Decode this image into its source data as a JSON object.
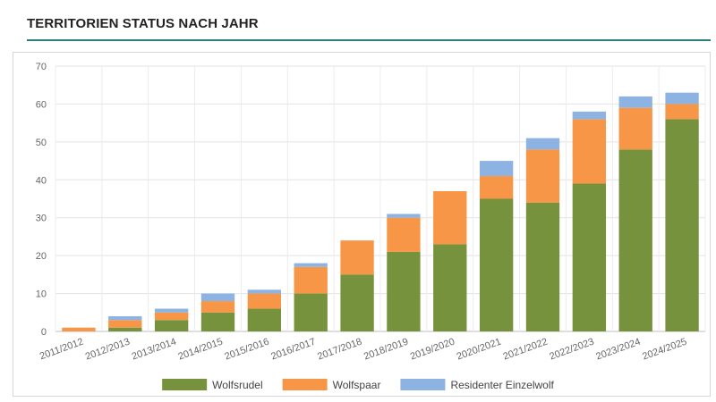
{
  "title": "TERRITORIEN STATUS NACH JAHR",
  "chart_data": {
    "type": "bar",
    "stacked": true,
    "categories": [
      "2011/2012",
      "2012/2013",
      "2013/2014",
      "2014/2015",
      "2015/2016",
      "2016/2017",
      "2017/2018",
      "2018/2019",
      "2019/2020",
      "2020/2021",
      "2021/2022",
      "2022/2023",
      "2023/2024",
      "2024/2025"
    ],
    "series": [
      {
        "name": "Wolfsrudel",
        "color": "#76923c",
        "values": [
          0,
          1,
          3,
          5,
          6,
          10,
          15,
          21,
          23,
          35,
          34,
          39,
          48,
          56
        ]
      },
      {
        "name": "Wolfspaar",
        "color": "#f79646",
        "values": [
          1,
          2,
          2,
          3,
          4,
          7,
          9,
          9,
          14,
          6,
          14,
          17,
          11,
          4
        ]
      },
      {
        "name": "Residenter Einzelwolf",
        "color": "#8db3e2",
        "values": [
          0,
          1,
          1,
          2,
          1,
          1,
          0,
          1,
          0,
          4,
          3,
          2,
          3,
          3
        ]
      }
    ],
    "y_ticks": [
      0,
      10,
      20,
      30,
      40,
      50,
      60,
      70
    ],
    "ylim": [
      0,
      70
    ],
    "grid": true,
    "legend_position": "bottom-center"
  }
}
